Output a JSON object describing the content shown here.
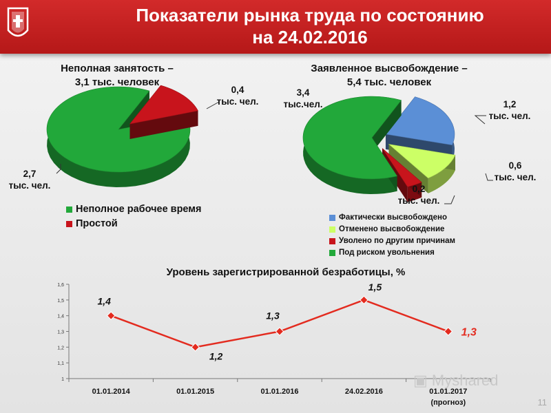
{
  "header": {
    "title_line1": "Показатели рынка труда по состоянию",
    "title_line2": "на 24.02.2016"
  },
  "colors": {
    "brand_red": "#c41e1e",
    "green": "#22a83a",
    "red": "#c8141c",
    "blue": "#5b8fd6",
    "light_green": "#ccff66",
    "line": "#e32b1f"
  },
  "chart_data": [
    {
      "type": "pie",
      "title_line1": "Неполная занятость –",
      "title_line2": "3,1 тыс. человек",
      "slices": [
        {
          "name": "Неполное рабочее время",
          "value": 2.7,
          "label_line1": "2,7",
          "label_line2": "тыс. чел.",
          "color": "#22a83a"
        },
        {
          "name": "Простой",
          "value": 0.4,
          "label_line1": "0,4",
          "label_line2": "тыс. чел.",
          "color": "#c8141c"
        }
      ],
      "legend": [
        "Неполное рабочее время",
        "Простой"
      ],
      "legend_position": "bottom"
    },
    {
      "type": "pie",
      "title_line1": "Заявленное высвобождение –",
      "title_line2": "5,4 тыс. человек",
      "slices": [
        {
          "name": "Фактически высвобождено",
          "value": 1.2,
          "label_line1": "1,2",
          "label_line2": "тыс. чел.",
          "color": "#5b8fd6"
        },
        {
          "name": "Отменено высвобождение",
          "value": 0.6,
          "label_line1": "0,6",
          "label_line2": "тыс. чел.",
          "color": "#ccff66"
        },
        {
          "name": "Уволено по другим причинам",
          "value": 0.2,
          "label_line1": "0,2",
          "label_line2": "тыс. чел.",
          "color": "#c8141c"
        },
        {
          "name": "Под риском увольнения",
          "value": 3.4,
          "label_line1": "3,4",
          "label_line2": "тыс.чел.",
          "color": "#22a83a"
        }
      ],
      "legend": [
        "Фактически высвобождено",
        "Отменено высвобождение",
        "Уволено по другим причинам",
        "Под риском увольнения"
      ],
      "legend_position": "bottom"
    },
    {
      "type": "line",
      "title": "Уровень зарегистрированной безработицы, %",
      "categories": [
        "01.01.2014",
        "01.01.2015",
        "01.01.2016",
        "24.02.2016",
        "01.01.2017"
      ],
      "category_sublabels": [
        "",
        "",
        "",
        "",
        "(прогноз)"
      ],
      "values": [
        1.4,
        1.2,
        1.3,
        1.5,
        1.3
      ],
      "value_labels": [
        "1,4",
        "1,2",
        "1,3",
        "1,5",
        "1,3"
      ],
      "ylim": [
        1,
        1.6
      ],
      "yticks": [
        "1",
        "1,1",
        "1,2",
        "1,3",
        "1,4",
        "1,5",
        "1,6"
      ],
      "grid": false,
      "last_point_forecast": true
    }
  ],
  "page_number": "11"
}
